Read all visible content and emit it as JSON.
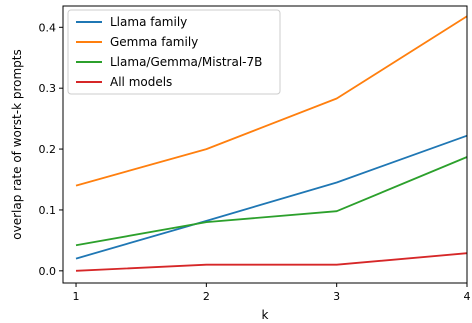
{
  "chart_data": {
    "type": "line",
    "title": "",
    "xlabel": "k",
    "ylabel": "overlap rate of worst-k prompts",
    "x": [
      1,
      2,
      3,
      4
    ],
    "xticks": [
      "1",
      "2",
      "3",
      "4"
    ],
    "yticks": [
      "0.0",
      "0.1",
      "0.2",
      "0.3",
      "0.4"
    ],
    "xlim": [
      0.9,
      4.0
    ],
    "ylim": [
      -0.02,
      0.435
    ],
    "grid": false,
    "legend_position": "upper-left",
    "series": [
      {
        "name": "Llama family",
        "color": "#1f77b4",
        "values": [
          0.02,
          0.082,
          0.145,
          0.222
        ]
      },
      {
        "name": "Gemma family",
        "color": "#ff7f0e",
        "values": [
          0.14,
          0.2,
          0.283,
          0.418
        ]
      },
      {
        "name": "Llama/Gemma/Mistral-7B",
        "color": "#2ca02c",
        "values": [
          0.042,
          0.08,
          0.098,
          0.187
        ]
      },
      {
        "name": "All models",
        "color": "#d62728",
        "values": [
          0.0,
          0.01,
          0.01,
          0.029
        ]
      }
    ]
  }
}
